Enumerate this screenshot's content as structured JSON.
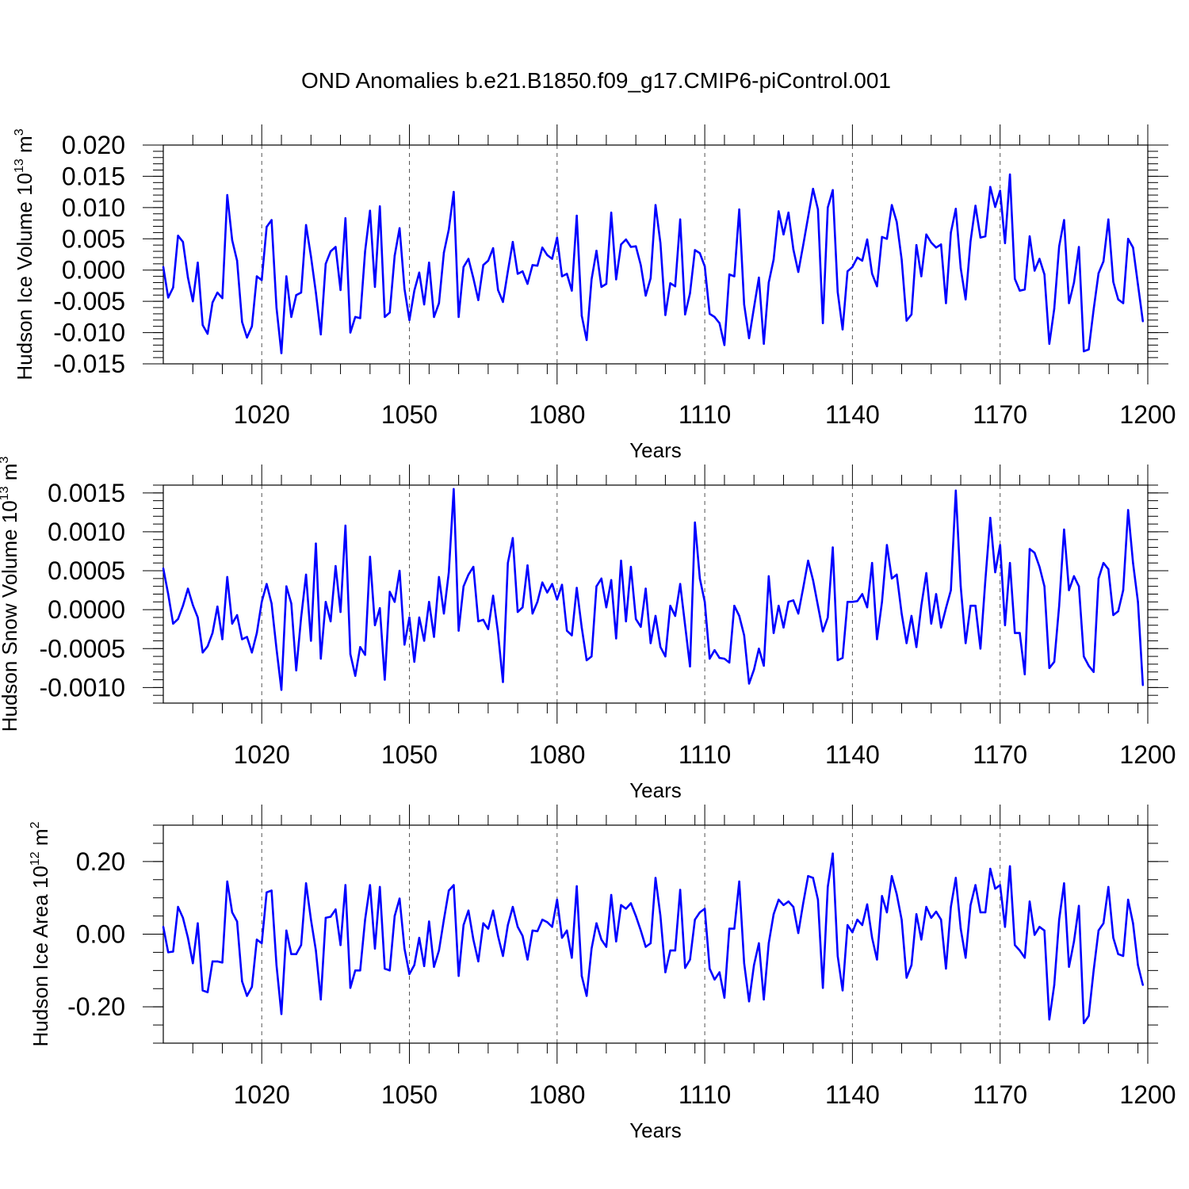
{
  "title": "OND Anomalies b.e21.B1850.f09_g17.CMIP6-piControl.001",
  "colors": {
    "line": "#0000ff",
    "axis": "#000000",
    "grid": "#555555"
  },
  "chart_data": [
    {
      "type": "line",
      "ylabel_text": "Hudson Ice Volume 10",
      "ylabel_exp": "13",
      "ylabel_unit": " m",
      "ylabel_unit_exp": "3",
      "xlabel": "Years",
      "xlim": [
        1000,
        1200
      ],
      "ylim": [
        -0.015,
        0.02
      ],
      "yticks": [
        -0.015,
        -0.01,
        -0.005,
        0.0,
        0.005,
        0.01,
        0.015,
        0.02
      ],
      "ytick_labels": [
        "-0.015",
        "-0.010",
        "-0.005",
        "0.000",
        "0.005",
        "0.010",
        "0.015",
        "0.020"
      ],
      "yminor_step": 0.001,
      "xticks": [
        1020,
        1050,
        1080,
        1110,
        1140,
        1170,
        1200
      ],
      "xtick_labels": [
        "1020",
        "1050",
        "1080",
        "1110",
        "1140",
        "1170",
        "1200"
      ],
      "xminor_step": 6,
      "grid_x": [
        1020,
        1050,
        1080,
        1110,
        1140,
        1170
      ],
      "x_start": 1000,
      "x_step": 1,
      "values": [
        0.0005,
        -0.0044,
        -0.0028,
        0.0055,
        0.0045,
        -0.0012,
        -0.005,
        0.0012,
        -0.0088,
        -0.0102,
        -0.0052,
        -0.0036,
        -0.0045,
        0.012,
        0.0048,
        0.0015,
        -0.0083,
        -0.0108,
        -0.009,
        -0.001,
        -0.0016,
        0.0069,
        0.008,
        -0.006,
        -0.0133,
        -0.001,
        -0.0075,
        -0.004,
        -0.0036,
        0.0072,
        0.0022,
        -0.0036,
        -0.0103,
        0.001,
        0.003,
        0.0037,
        -0.0032,
        0.0083,
        -0.01,
        -0.0075,
        -0.0077,
        0.003,
        0.0095,
        -0.0027,
        0.0102,
        -0.0075,
        -0.0068,
        0.0023,
        0.0067,
        -0.003,
        -0.008,
        -0.0033,
        -0.0004,
        -0.0055,
        0.0012,
        -0.0075,
        -0.0053,
        0.0028,
        0.0065,
        0.0125,
        -0.0075,
        0.0005,
        0.0018,
        -0.0013,
        -0.0048,
        0.0008,
        0.0015,
        0.0035,
        -0.0032,
        -0.0051,
        -0.0002,
        0.0045,
        -0.0006,
        -0.0002,
        -0.0022,
        0.0008,
        0.0007,
        0.0036,
        0.0024,
        0.0018,
        0.0052,
        -0.001,
        -0.0006,
        -0.0033,
        0.0087,
        -0.0073,
        -0.0112,
        -0.0015,
        0.0031,
        -0.0027,
        -0.0022,
        0.0092,
        -0.0015,
        0.0041,
        0.0049,
        0.0037,
        0.0038,
        0.0008,
        -0.0041,
        -0.0013,
        0.0104,
        0.0043,
        -0.0072,
        -0.0021,
        -0.0026,
        0.0081,
        -0.0071,
        -0.0037,
        0.0032,
        0.0027,
        0.0006,
        -0.007,
        -0.0075,
        -0.0085,
        -0.012,
        -0.0007,
        -0.001,
        0.0097,
        -0.0055,
        -0.0109,
        -0.006,
        -0.0012,
        -0.0118,
        -0.002,
        0.0017,
        0.0094,
        0.0057,
        0.0092,
        0.0033,
        -0.0003,
        0.004,
        0.0085,
        0.013,
        0.0097,
        -0.0085,
        0.01,
        0.0128,
        -0.0035,
        -0.0095,
        -0.0002,
        0.0005,
        0.002,
        0.0015,
        0.0049,
        -0.0006,
        -0.0026,
        0.0053,
        0.005,
        0.0104,
        0.0077,
        0.0017,
        -0.0081,
        -0.0071,
        0.004,
        -0.001,
        0.0057,
        0.0044,
        0.0036,
        0.0041,
        -0.0053,
        0.006,
        0.0098,
        0.0003,
        -0.0047,
        0.0046,
        0.0103,
        0.0052,
        0.0054,
        0.0133,
        0.0101,
        0.0127,
        0.0043,
        0.0153,
        -0.0014,
        -0.0033,
        -0.0031,
        0.0054,
        -0.0001,
        0.0018,
        -0.0007,
        -0.0118,
        -0.0062,
        0.0038,
        0.008,
        -0.0053,
        -0.002,
        0.0037,
        -0.013,
        -0.0127,
        -0.0063,
        -0.0005,
        0.0014,
        0.0081,
        -0.0019,
        -0.0047,
        -0.0053,
        0.005,
        0.0036,
        -0.0023,
        -0.0082
      ]
    },
    {
      "type": "line",
      "ylabel_text": "Hudson Snow Volume 10",
      "ylabel_exp": "13",
      "ylabel_unit": " m",
      "ylabel_unit_exp": "3",
      "xlabel": "Years",
      "xlim": [
        1000,
        1200
      ],
      "ylim": [
        -0.0012,
        0.0016
      ],
      "yticks": [
        -0.001,
        -0.0005,
        0.0,
        0.0005,
        0.001,
        0.0015
      ],
      "ytick_labels": [
        "-0.0010",
        "-0.0005",
        "0.0000",
        "0.0005",
        "0.0010",
        "0.0015"
      ],
      "yminor_step": 0.0001,
      "xticks": [
        1020,
        1050,
        1080,
        1110,
        1140,
        1170,
        1200
      ],
      "xtick_labels": [
        "1020",
        "1050",
        "1080",
        "1110",
        "1140",
        "1170",
        "1200"
      ],
      "xminor_step": 6,
      "grid_x": [
        1020,
        1050,
        1080,
        1110,
        1140,
        1170
      ],
      "x_start": 1000,
      "x_step": 1,
      "values": [
        0.00053,
        0.0002,
        -0.00018,
        -0.00012,
        5e-05,
        0.00027,
        6e-05,
        -0.0001,
        -0.00055,
        -0.00047,
        -0.0003,
        4e-05,
        -0.00038,
        0.00042,
        -0.00018,
        -7e-05,
        -0.00038,
        -0.00035,
        -0.00055,
        -0.0003,
        0.0001,
        0.00033,
        8e-05,
        -0.0005,
        -0.00103,
        0.0003,
        8e-05,
        -0.00078,
        -0.0001,
        0.00045,
        -0.0004,
        0.00085,
        -0.00063,
        0.0001,
        -0.00015,
        0.00056,
        -3e-05,
        0.00108,
        -0.00057,
        -0.00085,
        -0.00048,
        -0.00058,
        0.00068,
        -0.0002,
        2e-05,
        -0.0009,
        0.00023,
        0.0001,
        0.0005,
        -0.00045,
        -0.0001,
        -0.00067,
        -0.0001,
        -0.0004,
        0.0001,
        -0.00035,
        0.00042,
        -5e-05,
        0.00048,
        0.00155,
        -0.00027,
        0.0003,
        0.00045,
        0.00055,
        -0.00015,
        -0.00013,
        -0.00025,
        0.00018,
        -0.0003,
        -0.00093,
        0.0006,
        0.00092,
        -3e-05,
        3e-05,
        0.00057,
        -5e-05,
        0.0001,
        0.00035,
        0.00022,
        0.00033,
        0.00013,
        0.00032,
        -0.00027,
        -0.00033,
        0.00028,
        -0.00023,
        -0.00065,
        -0.0006,
        0.0003,
        0.0004,
        3e-05,
        0.00038,
        -0.00037,
        0.00063,
        -0.00015,
        0.00055,
        -0.00012,
        -0.00022,
        0.00027,
        -0.00043,
        -8e-05,
        -0.00048,
        -0.0006,
        5e-05,
        -8e-05,
        0.00033,
        -0.0002,
        -0.00073,
        0.00112,
        0.0004,
        0.0001,
        -0.00063,
        -0.00052,
        -0.00062,
        -0.00063,
        -0.00068,
        5e-05,
        -8e-05,
        -0.00033,
        -0.00095,
        -0.00077,
        -0.0005,
        -0.00072,
        0.00043,
        -0.0003,
        5e-05,
        -0.00023,
        0.0001,
        0.00012,
        -5e-05,
        0.00028,
        0.00063,
        0.00038,
        5e-05,
        -0.00028,
        -0.0001,
        0.0008,
        -0.00065,
        -0.00062,
        0.0001,
        0.0001,
        0.00011,
        0.0002,
        3e-05,
        0.0006,
        -0.00038,
        0.0001,
        0.00083,
        0.0004,
        0.00045,
        -5e-05,
        -0.00043,
        -8e-05,
        -0.00048,
        5e-05,
        0.00047,
        -0.00018,
        0.0002,
        -0.00023,
        2e-05,
        0.00025,
        0.00153,
        0.0003,
        -0.00043,
        5e-05,
        5e-05,
        -0.0005,
        0.00038,
        0.00118,
        0.00048,
        0.00083,
        -0.0002,
        0.0006,
        -0.0003,
        -0.0003,
        -0.00083,
        0.00078,
        0.00073,
        0.00055,
        0.0003,
        -0.00075,
        -0.00067,
        5e-05,
        0.00103,
        0.00025,
        0.00043,
        0.0003,
        -0.0006,
        -0.00072,
        -0.0008,
        0.0004,
        0.0006,
        0.00052,
        -7e-05,
        -2e-05,
        0.00025,
        0.00128,
        0.0006,
        0.0001,
        -0.00097
      ]
    },
    {
      "type": "line",
      "ylabel_text": "Hudson Ice Area 10",
      "ylabel_exp": "12",
      "ylabel_unit": " m",
      "ylabel_unit_exp": "2",
      "xlabel": "Years",
      "xlim": [
        1000,
        1200
      ],
      "ylim": [
        -0.3,
        0.3
      ],
      "yticks": [
        -0.2,
        0.0,
        0.2
      ],
      "ytick_labels": [
        "-0.20",
        "0.00",
        "0.20"
      ],
      "yminor_step": 0.05,
      "xticks": [
        1020,
        1050,
        1080,
        1110,
        1140,
        1170,
        1200
      ],
      "xtick_labels": [
        "1020",
        "1050",
        "1080",
        "1110",
        "1140",
        "1170",
        "1200"
      ],
      "xminor_step": 6,
      "grid_x": [
        1020,
        1050,
        1080,
        1110,
        1140,
        1170
      ],
      "x_start": 1000,
      "x_step": 1,
      "values": [
        0.02,
        -0.05,
        -0.048,
        0.075,
        0.045,
        -0.01,
        -0.08,
        0.03,
        -0.155,
        -0.16,
        -0.075,
        -0.075,
        -0.078,
        0.145,
        0.06,
        0.035,
        -0.13,
        -0.17,
        -0.145,
        -0.015,
        -0.025,
        0.115,
        0.12,
        -0.085,
        -0.22,
        0.01,
        -0.055,
        -0.055,
        -0.03,
        0.14,
        0.04,
        -0.045,
        -0.18,
        0.045,
        0.048,
        0.068,
        -0.03,
        0.135,
        -0.148,
        -0.1,
        -0.1,
        0.04,
        0.135,
        -0.04,
        0.13,
        -0.095,
        -0.1,
        0.05,
        0.098,
        -0.04,
        -0.11,
        -0.085,
        -0.01,
        -0.088,
        0.035,
        -0.09,
        -0.045,
        0.04,
        0.12,
        0.135,
        -0.115,
        0.025,
        0.065,
        -0.015,
        -0.075,
        0.03,
        0.015,
        0.065,
        -0.005,
        -0.06,
        0.025,
        0.075,
        0.02,
        -0.005,
        -0.07,
        0.01,
        0.008,
        0.04,
        0.033,
        0.02,
        0.095,
        -0.01,
        0.01,
        -0.065,
        0.132,
        -0.115,
        -0.17,
        -0.04,
        0.03,
        -0.015,
        -0.035,
        0.108,
        -0.02,
        0.08,
        0.07,
        0.085,
        0.05,
        0.01,
        -0.035,
        -0.025,
        0.155,
        0.05,
        -0.105,
        -0.045,
        -0.045,
        0.122,
        -0.093,
        -0.07,
        0.04,
        0.06,
        0.07,
        -0.095,
        -0.125,
        -0.105,
        -0.175,
        0.015,
        0.015,
        0.145,
        -0.08,
        -0.185,
        -0.085,
        -0.025,
        -0.18,
        -0.025,
        0.055,
        0.095,
        0.08,
        0.09,
        0.075,
        0.003,
        0.085,
        0.16,
        0.155,
        0.095,
        -0.148,
        0.13,
        0.222,
        -0.06,
        -0.155,
        0.025,
        0.005,
        0.04,
        0.025,
        0.082,
        -0.01,
        -0.07,
        0.105,
        0.06,
        0.16,
        0.11,
        0.04,
        -0.12,
        -0.085,
        0.055,
        -0.015,
        0.075,
        0.045,
        0.062,
        0.04,
        -0.095,
        0.075,
        0.155,
        0.015,
        -0.065,
        0.08,
        0.135,
        0.06,
        0.06,
        0.18,
        0.125,
        0.135,
        0.02,
        0.187,
        -0.03,
        -0.045,
        -0.065,
        0.09,
        -0.002,
        0.02,
        0.01,
        -0.235,
        -0.14,
        0.04,
        0.14,
        -0.09,
        -0.02,
        0.078,
        -0.245,
        -0.225,
        -0.1,
        0.01,
        0.03,
        0.13,
        -0.01,
        -0.055,
        -0.06,
        0.095,
        0.03,
        -0.085,
        -0.14
      ]
    }
  ]
}
